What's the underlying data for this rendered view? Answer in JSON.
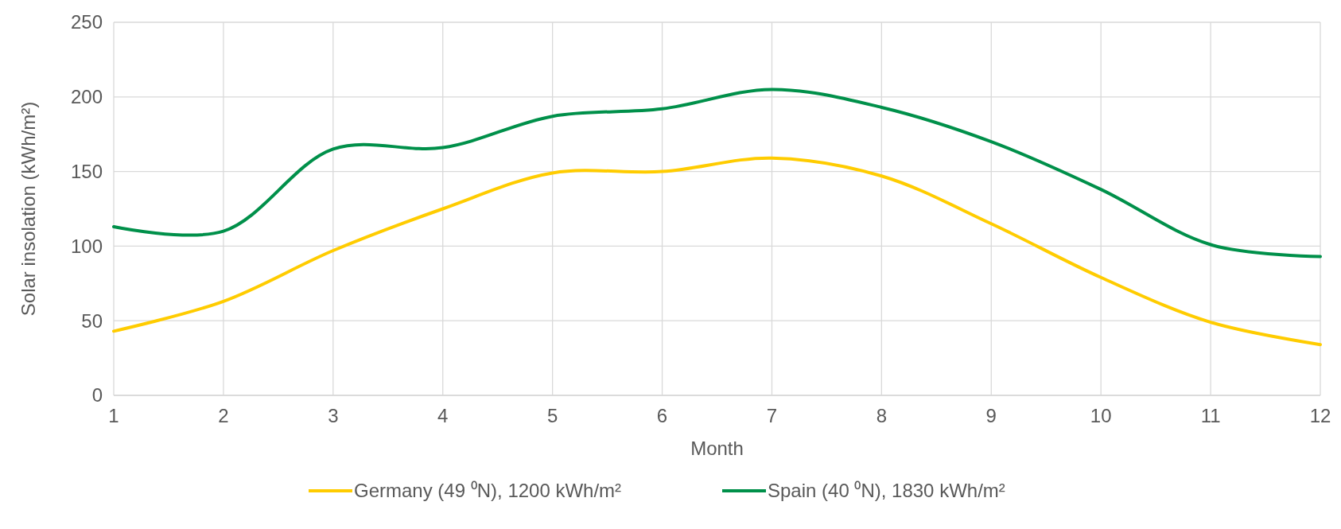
{
  "chart_data": {
    "type": "line",
    "xlabel": "Month",
    "ylabel": "Solar insolation (kWh/m²)",
    "x": [
      1,
      2,
      3,
      4,
      5,
      6,
      7,
      8,
      9,
      10,
      11,
      12
    ],
    "series": [
      {
        "name": "Germany (49 ⁰N), 1200 kWh/m²",
        "color": "#ffcc00",
        "values": [
          43,
          63,
          97,
          125,
          149,
          150,
          159,
          147,
          115,
          79,
          49,
          34
        ]
      },
      {
        "name": "Spain (40 ⁰N), 1830 kWh/m²",
        "color": "#00904a",
        "values": [
          113,
          110,
          165,
          166,
          187,
          192,
          205,
          193,
          170,
          138,
          101,
          93
        ]
      }
    ],
    "xlim": [
      1,
      12
    ],
    "xticks": [
      1,
      2,
      3,
      4,
      5,
      6,
      7,
      8,
      9,
      10,
      11,
      12
    ],
    "ylim": [
      0,
      250
    ],
    "yticks": [
      0,
      50,
      100,
      150,
      200,
      250
    ],
    "grid": true,
    "legend": "bottom",
    "marker": "none",
    "line_style": "solid"
  }
}
